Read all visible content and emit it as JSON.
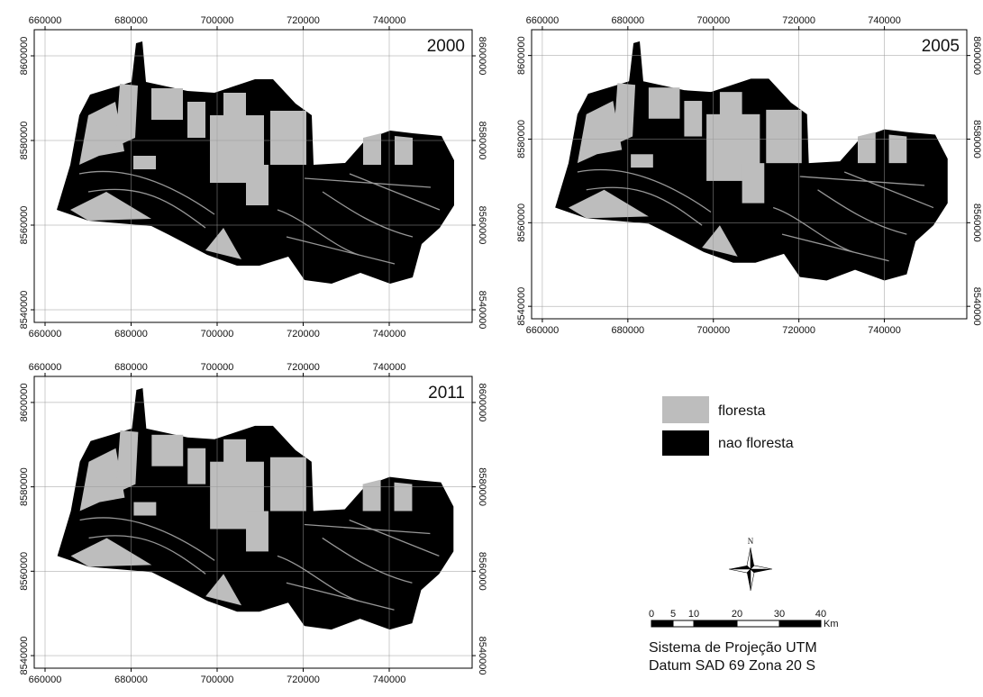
{
  "panels": [
    {
      "year": "2000",
      "x_ticks": [
        "660000",
        "680000",
        "700000",
        "720000",
        "740000"
      ],
      "y_ticks": [
        "8600000",
        "8580000",
        "8560000",
        "8540000"
      ]
    },
    {
      "year": "2005",
      "x_ticks": [
        "660000",
        "680000",
        "700000",
        "720000",
        "740000"
      ],
      "y_ticks": [
        "8600000",
        "8580000",
        "8560000",
        "8540000"
      ]
    },
    {
      "year": "2011",
      "x_ticks": [
        "660000",
        "680000",
        "700000",
        "720000",
        "740000"
      ],
      "y_ticks": [
        "8600000",
        "8580000",
        "8560000",
        "8540000"
      ]
    }
  ],
  "legend": [
    {
      "label": "floresta"
    },
    {
      "label": "nao floresta"
    }
  ],
  "north": "N",
  "scale": {
    "labels": [
      "0",
      "5",
      "10",
      "20",
      "30",
      "40"
    ],
    "unit": "Km"
  },
  "projection": [
    "Sistema de Projeção UTM",
    "Datum SAD 69 Zona 20 S"
  ]
}
